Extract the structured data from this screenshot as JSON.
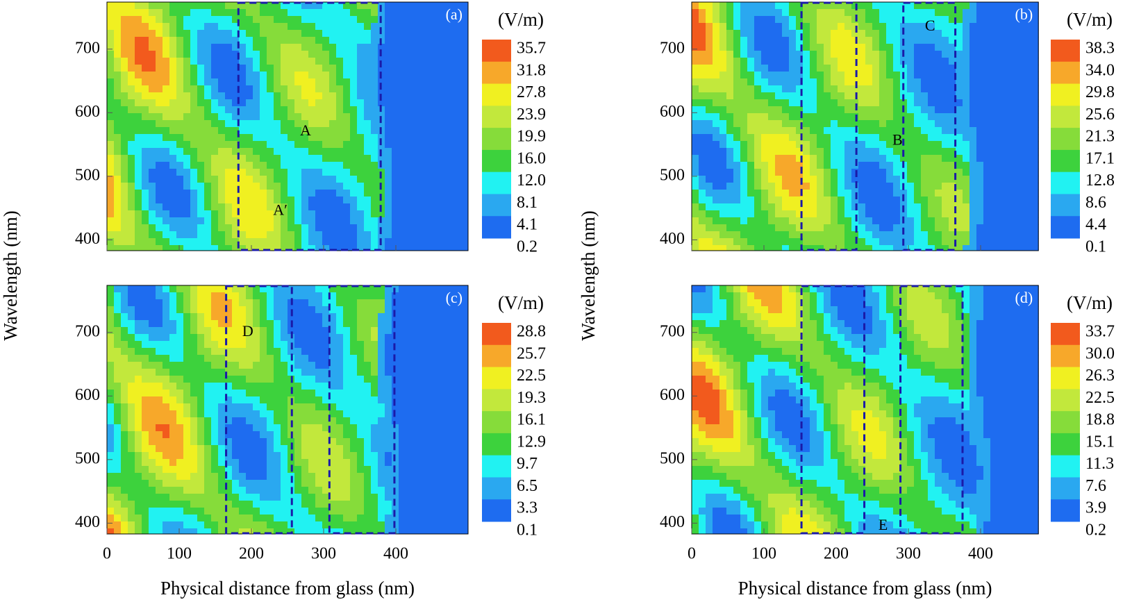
{
  "chart_data": [
    {
      "type": "contour",
      "panel_label": "(a)",
      "xlim": [
        0,
        500
      ],
      "ylim": [
        383,
        774
      ],
      "xticks": [
        0,
        100,
        200,
        300,
        400
      ],
      "yticks": [
        400,
        500,
        600,
        700
      ],
      "ylabel": "Wavelength (nm)",
      "colorbar_label": "(V/m)",
      "levels": [
        35.7,
        31.8,
        27.8,
        23.9,
        19.9,
        {
          "value": 16,
          "label": "16.0"
        },
        {
          "value": 12,
          "label": "12.0"
        },
        8.1,
        4.1,
        0.2
      ],
      "colors": [
        "#f25a1d",
        "#f7a82a",
        "#f0f021",
        "#c2e83c",
        "#86dc3a",
        "#3dd23d",
        "#21f2f2",
        "#2aa8f0",
        "#1e6cf0"
      ],
      "boxes": [
        [
          182,
          379
        ]
      ],
      "annotations": [
        "A",
        "A′"
      ]
    },
    {
      "type": "contour",
      "panel_label": "(b)",
      "xlim": [
        0,
        480
      ],
      "ylim": [
        383,
        774
      ],
      "xticks": [
        0,
        100,
        200,
        300,
        400
      ],
      "yticks": [
        400,
        500,
        600,
        700
      ],
      "ylabel": "Wavelength (nm)",
      "colorbar_label": "(V/m)",
      "levels": [
        38.3,
        {
          "value": 34,
          "label": "34.0"
        },
        29.8,
        25.6,
        21.3,
        17.1,
        12.8,
        8.6,
        4.4,
        0.1
      ],
      "colors": [
        "#f25a1d",
        "#f7a82a",
        "#f0f021",
        "#c2e83c",
        "#86dc3a",
        "#3dd23d",
        "#21f2f2",
        "#2aa8f0",
        "#1e6cf0"
      ],
      "boxes": [
        [
          152,
          228
        ],
        [
          293,
          365
        ]
      ],
      "annotations": [
        "B",
        "C"
      ]
    },
    {
      "type": "contour",
      "panel_label": "(c)",
      "xlim": [
        0,
        500
      ],
      "ylim": [
        383,
        774
      ],
      "xticks": [
        0,
        100,
        200,
        300,
        400
      ],
      "yticks": [
        400,
        500,
        600,
        700
      ],
      "xlabel": "Physical distance from glass (nm)",
      "colorbar_label": "(V/m)",
      "levels": [
        28.8,
        25.7,
        22.5,
        19.3,
        16.1,
        12.9,
        9.7,
        6.5,
        3.3,
        0.1
      ],
      "colors": [
        "#f25a1d",
        "#f7a82a",
        "#f0f021",
        "#c2e83c",
        "#86dc3a",
        "#3dd23d",
        "#21f2f2",
        "#2aa8f0",
        "#1e6cf0"
      ],
      "boxes": [
        [
          165,
          256
        ],
        [
          308,
          398
        ]
      ],
      "annotations": [
        "D"
      ]
    },
    {
      "type": "contour",
      "panel_label": "(d)",
      "xlim": [
        0,
        480
      ],
      "ylim": [
        383,
        774
      ],
      "xticks": [
        0,
        100,
        200,
        300,
        400
      ],
      "yticks": [
        400,
        500,
        600,
        700
      ],
      "xlabel": "Physical distance from glass (nm)",
      "colorbar_label": "(V/m)",
      "levels": [
        33.7,
        {
          "value": 30,
          "label": "30.0"
        },
        26.3,
        22.5,
        18.8,
        15.1,
        11.3,
        7.6,
        3.9,
        0.2
      ],
      "colors": [
        "#f25a1d",
        "#f7a82a",
        "#f0f021",
        "#c2e83c",
        "#86dc3a",
        "#3dd23d",
        "#21f2f2",
        "#2aa8f0",
        "#1e6cf0"
      ],
      "boxes": [
        [
          152,
          239
        ],
        [
          289,
          375
        ]
      ],
      "annotations": [
        "E"
      ]
    }
  ]
}
